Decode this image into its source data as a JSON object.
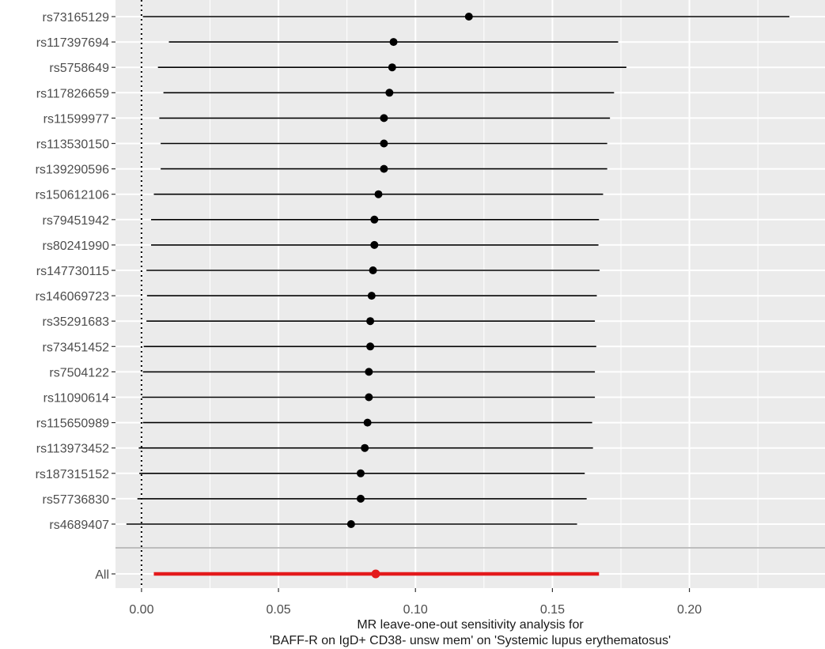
{
  "chart_data": {
    "type": "forest",
    "xlabel_lines": [
      "MR leave-one-out sensitivity analysis for",
      "'BAFF-R on IgD+ CD38- unsw mem' on 'Systemic lupus erythematosus'"
    ],
    "x_ticks": [
      0.0,
      0.05,
      0.1,
      0.15,
      0.2
    ],
    "x_tick_labels": [
      "0.00",
      "0.05",
      "0.10",
      "0.15",
      "0.20"
    ],
    "xlim": [
      -0.0095,
      0.2495
    ],
    "reference_line_x": 0,
    "grid": true,
    "background_color": "#ebebeb",
    "grid_color": "#ffffff",
    "point_color": "#000000",
    "overall_color": "#e31a1c",
    "separator_color": "#bdbdbd",
    "rows": [
      {
        "label": "rs73165129",
        "estimate": 0.1195,
        "lower": 0.0005,
        "upper": 0.2365
      },
      {
        "label": "rs117397694",
        "estimate": 0.092,
        "lower": 0.01,
        "upper": 0.174
      },
      {
        "label": "rs5758649",
        "estimate": 0.0915,
        "lower": 0.006,
        "upper": 0.177
      },
      {
        "label": "rs117826659",
        "estimate": 0.0905,
        "lower": 0.008,
        "upper": 0.1725
      },
      {
        "label": "rs11599977",
        "estimate": 0.0885,
        "lower": 0.0065,
        "upper": 0.171
      },
      {
        "label": "rs113530150",
        "estimate": 0.0885,
        "lower": 0.007,
        "upper": 0.17
      },
      {
        "label": "rs139290596",
        "estimate": 0.0885,
        "lower": 0.007,
        "upper": 0.17
      },
      {
        "label": "rs150612106",
        "estimate": 0.0865,
        "lower": 0.0045,
        "upper": 0.1685
      },
      {
        "label": "rs79451942",
        "estimate": 0.085,
        "lower": 0.0035,
        "upper": 0.167
      },
      {
        "label": "rs80241990",
        "estimate": 0.085,
        "lower": 0.0035,
        "upper": 0.1668
      },
      {
        "label": "rs147730115",
        "estimate": 0.0845,
        "lower": 0.0018,
        "upper": 0.1672
      },
      {
        "label": "rs146069723",
        "estimate": 0.084,
        "lower": 0.002,
        "upper": 0.1662
      },
      {
        "label": "rs35291683",
        "estimate": 0.0835,
        "lower": 0.0018,
        "upper": 0.1655
      },
      {
        "label": "rs73451452",
        "estimate": 0.0835,
        "lower": 0.0008,
        "upper": 0.166
      },
      {
        "label": "rs7504122",
        "estimate": 0.083,
        "lower": 0.0005,
        "upper": 0.1655
      },
      {
        "label": "rs11090614",
        "estimate": 0.083,
        "lower": 0.0002,
        "upper": 0.1655
      },
      {
        "label": "rs115650989",
        "estimate": 0.0825,
        "lower": 0.0005,
        "upper": 0.1645
      },
      {
        "label": "rs113973452",
        "estimate": 0.0815,
        "lower": -0.001,
        "upper": 0.1648
      },
      {
        "label": "rs187315152",
        "estimate": 0.08,
        "lower": -0.0008,
        "upper": 0.1618
      },
      {
        "label": "rs57736830",
        "estimate": 0.08,
        "lower": -0.0015,
        "upper": 0.1625
      },
      {
        "label": "rs4689407",
        "estimate": 0.0765,
        "lower": -0.0055,
        "upper": 0.159
      }
    ],
    "overall": {
      "label": "All",
      "estimate": 0.0855,
      "lower": 0.0045,
      "upper": 0.167
    }
  }
}
